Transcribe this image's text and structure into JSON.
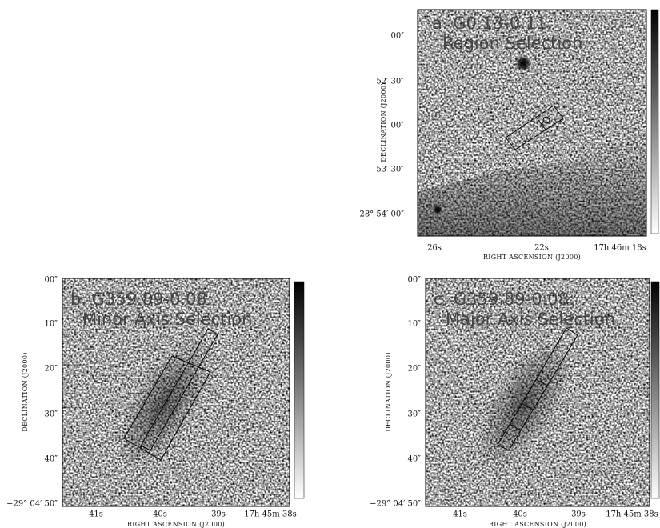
{
  "panels": [
    {
      "title": [
        "a. G0.13-0.11:",
        "Region Selection"
      ],
      "yticks": [
        "00″",
        "52′ 30″",
        "00″",
        "53′ 30″",
        "−28° 54′ 00″"
      ],
      "xticks": [
        "26s",
        "22s",
        "17h 46m 18s"
      ],
      "xlabel": "RIGHT ASCENSION (J2000)",
      "ylabel": "DECLINATION (J2000)"
    },
    {
      "title": [
        "b. G359.89-0.08:",
        "Minor Axis Selection"
      ],
      "yticks": [
        "00″",
        "10″",
        "20″",
        "30″",
        "40″",
        "−29° 04′ 50″"
      ],
      "xticks": [
        "41s",
        "40s",
        "39s",
        "17h 45m 38s"
      ],
      "xlabel": "RIGHT ASCENSION (J2000)",
      "ylabel": "DECLINATION (J2000)"
    },
    {
      "title": [
        "c. G359.89-0.08:",
        "Major Axis Selection"
      ],
      "yticks": [
        "00″",
        "10″",
        "20″",
        "30″",
        "40″",
        "−29° 04′ 50″"
      ],
      "xticks": [
        "41s",
        "40s",
        "39s",
        "17h 45m 38s"
      ],
      "xlabel": "RIGHT ASCENSION (J2000)",
      "ylabel": "DECLINATION (J2000)"
    }
  ]
}
